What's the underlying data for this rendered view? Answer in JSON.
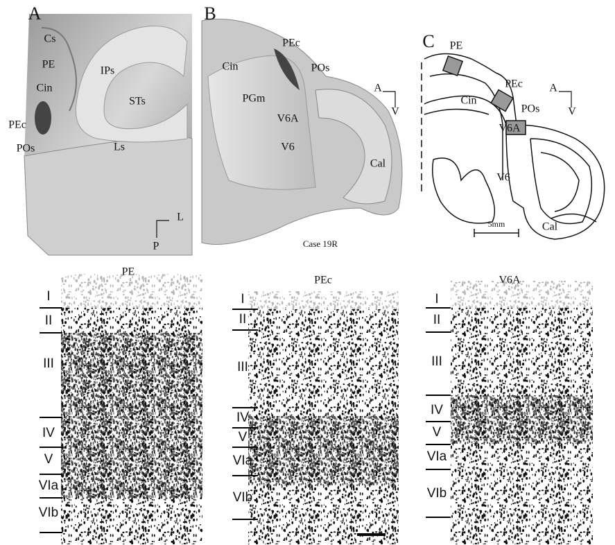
{
  "panel_a": {
    "letter": "A",
    "labels": [
      "Cs",
      "PE",
      "Cin",
      "IPs",
      "STs",
      "PEc",
      "POs",
      "Ls"
    ],
    "orientation": [
      "L",
      "P"
    ]
  },
  "panel_b": {
    "letter": "B",
    "labels": [
      "Cin",
      "PEc",
      "POs",
      "PGm",
      "V6A",
      "V6",
      "Cal"
    ],
    "orientation": [
      "A",
      "V"
    ],
    "caption": "Case 19R"
  },
  "panel_c": {
    "letter": "C",
    "labels": [
      "PE",
      "PEc",
      "Cin",
      "POs",
      "V6A",
      "V6",
      "Cal"
    ],
    "orientation": [
      "A",
      "V"
    ],
    "scale": "5mm"
  },
  "sections": [
    {
      "title": "PE",
      "layers": [
        "I",
        "II",
        "III",
        "IV",
        "V",
        "VIa",
        "VIb"
      ]
    },
    {
      "title": "PEc",
      "layers": [
        "I",
        "II",
        "III",
        "IV",
        "V",
        "VIa",
        "VIb"
      ]
    },
    {
      "title": "V6A",
      "layers": [
        "I",
        "II",
        "III",
        "IV",
        "V",
        "VIa",
        "VIb"
      ]
    }
  ]
}
